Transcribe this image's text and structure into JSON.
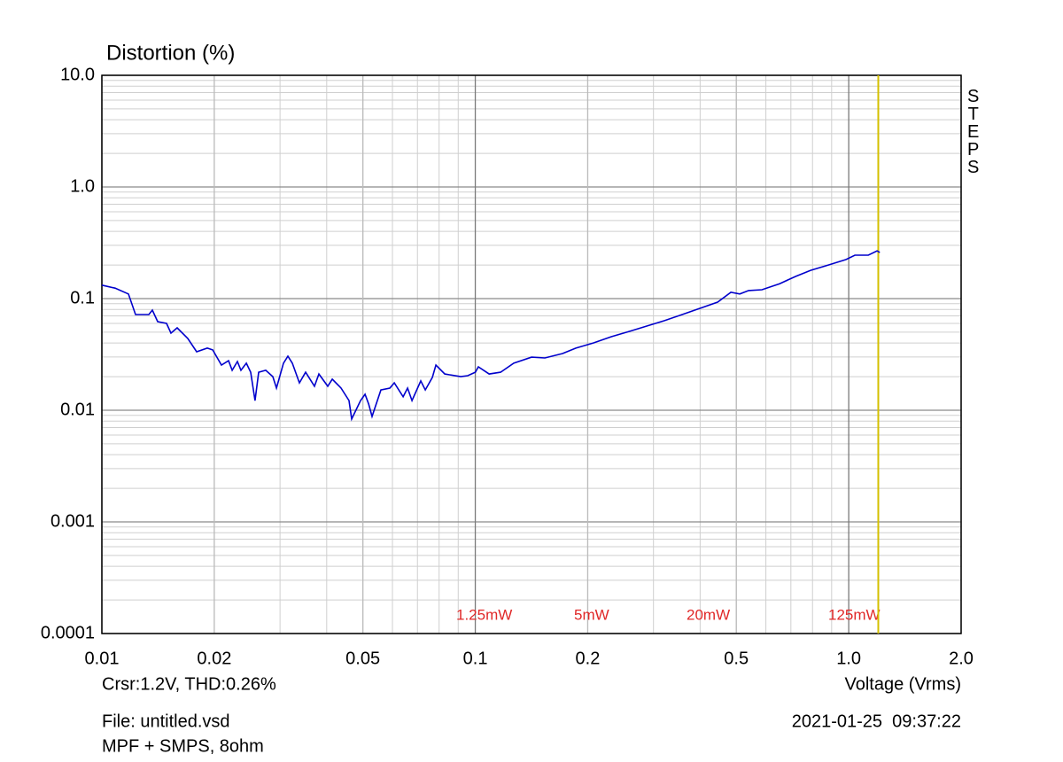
{
  "chart_data": {
    "type": "line",
    "title": "Distortion (%)",
    "x_label": "Voltage (Vrms)",
    "side_label": "STEPS",
    "cursor_text": "Crsr:1.2V, THD:0.26%",
    "file_text": "File: untitled.vsd",
    "description": "MPF + SMPS, 8ohm",
    "timestamp": "2021-01-25  09:37:22",
    "annotations": [
      "1.25mW",
      "5mW",
      "20mW",
      "125mW"
    ],
    "xscale": "log",
    "yscale": "log",
    "grid": true,
    "color": "#0000cc",
    "cursor": {
      "x": 1.2,
      "color": "#d4c000"
    },
    "xlim": [
      0.01,
      2
    ],
    "ylim": [
      0.0001,
      10
    ],
    "xticks": [
      0.01,
      0.02,
      0.05,
      0.1,
      0.2,
      0.5,
      {
        "value": 1,
        "label": "1.0"
      },
      {
        "value": 2,
        "label": "2.0"
      }
    ],
    "yticks": [
      {
        "value": 10,
        "label": "10.0"
      },
      {
        "value": 1,
        "label": "1.0"
      },
      0.1,
      0.01,
      0.001,
      0.0001
    ],
    "x": [
      0.01,
      0.01085,
      0.01178,
      0.01231,
      0.01336,
      0.01365,
      0.01411,
      0.0149,
      0.01531,
      0.01591,
      0.01699,
      0.01794,
      0.01916,
      0.0198,
      0.02091,
      0.02184,
      0.02233,
      0.02307,
      0.02358,
      0.02437,
      0.02503,
      0.02572,
      0.0263,
      0.02747,
      0.0287,
      0.02934,
      0.03064,
      0.03149,
      0.03236,
      0.03381,
      0.03513,
      0.03709,
      0.03813,
      0.04027,
      0.04139,
      0.04371,
      0.04591,
      0.04667,
      0.04929,
      0.05066,
      0.05178,
      0.05292,
      0.05588,
      0.05904,
      0.06067,
      0.06408,
      0.06585,
      0.06767,
      0.07146,
      0.07345,
      0.07673,
      0.07843,
      0.08283,
      0.0914,
      0.09546,
      0.1,
      0.1019,
      0.1089,
      0.1169,
      0.1268,
      0.1415,
      0.1536,
      0.1713,
      0.1859,
      0.2074,
      0.2313,
      0.258,
      0.2878,
      0.321,
      0.3581,
      0.3994,
      0.4456,
      0.4836,
      0.5108,
      0.5395,
      0.5855,
      0.6531,
      0.7205,
      0.7907,
      0.8819,
      0.9838,
      1.039,
      1.128,
      1.191,
      1.211
    ],
    "values": [
      0.132,
      0.124,
      0.11,
      0.072,
      0.072,
      0.0788,
      0.0622,
      0.06,
      0.049,
      0.0547,
      0.0439,
      0.0334,
      0.036,
      0.0347,
      0.0254,
      0.0278,
      0.0228,
      0.0273,
      0.0228,
      0.0264,
      0.0219,
      0.0122,
      0.0219,
      0.0228,
      0.02,
      0.0158,
      0.0264,
      0.0305,
      0.0264,
      0.0176,
      0.0219,
      0.0164,
      0.0211,
      0.0164,
      0.019,
      0.0158,
      0.0122,
      0.00834,
      0.0122,
      0.0139,
      0.0114,
      0.0088,
      0.0152,
      0.0158,
      0.0176,
      0.0132,
      0.0158,
      0.0122,
      0.0183,
      0.0152,
      0.0197,
      0.0254,
      0.0211,
      0.02,
      0.0204,
      0.0219,
      0.0245,
      0.0211,
      0.0219,
      0.0264,
      0.0299,
      0.0294,
      0.0322,
      0.036,
      0.0401,
      0.0456,
      0.0508,
      0.0568,
      0.0634,
      0.072,
      0.0818,
      0.0929,
      0.114,
      0.11,
      0.118,
      0.12,
      0.136,
      0.158,
      0.179,
      0.2,
      0.224,
      0.245,
      0.245,
      0.268,
      0.259
    ]
  }
}
